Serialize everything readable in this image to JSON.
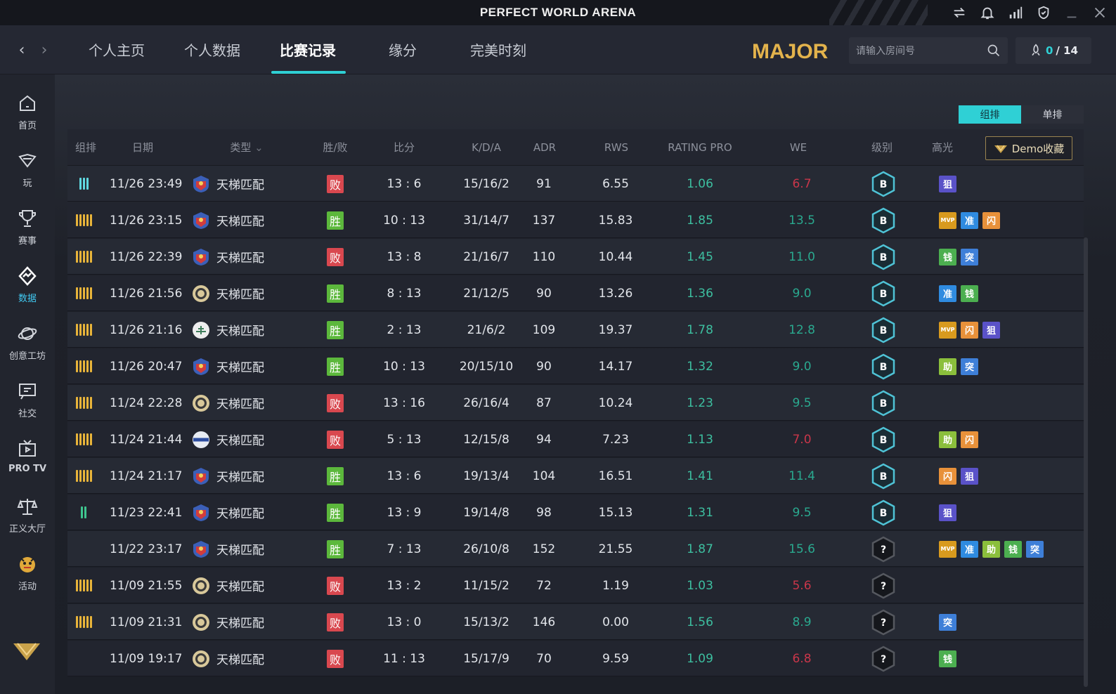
{
  "window": {
    "title": "PERFECT WORLD ARENA"
  },
  "nav": {
    "tabs": [
      "个人主页",
      "个人数据",
      "比赛记录",
      "缘分",
      "完美时刻"
    ],
    "active": "比赛记录",
    "logo_text": "MAJOR"
  },
  "search": {
    "placeholder": "请输入房间号"
  },
  "counter": {
    "current": "0",
    "total": "/ 14"
  },
  "sidebar": {
    "items": [
      "首页",
      "玩",
      "赛事",
      "数据",
      "创意工坊",
      "社交",
      "PRO TV",
      "正义大厅",
      "活动"
    ],
    "active": "数据"
  },
  "toggle": {
    "group": "组排",
    "solo": "单排",
    "selected": "组排"
  },
  "table": {
    "headers": {
      "group": "组排",
      "date": "日期",
      "type": "类型",
      "result": "胜/败",
      "score": "比分",
      "kda": "K/D/A",
      "adr": "ADR",
      "rws": "RWS",
      "rating": "RATING PRO",
      "we": "WE",
      "level": "级别",
      "highlights": "高光"
    },
    "demo_button": "Demo收藏",
    "rows": [
      {
        "party": 3,
        "party_color": "#5fd8e0",
        "date": "11/26 23:49",
        "type": "天梯匹配",
        "map": "red",
        "result": "败",
        "score": "13 : 6",
        "kda": "15/16/2",
        "adr": "91",
        "rws": "6.55",
        "rating": "1.06",
        "we": "6.7",
        "we_color": "#c9364a",
        "level": "B",
        "highlights": [
          "狙"
        ]
      },
      {
        "party": 5,
        "party_color": "#e8b43a",
        "date": "11/26 23:15",
        "type": "天梯匹配",
        "map": "red",
        "result": "胜",
        "score": "10 : 13",
        "kda": "31/14/7",
        "adr": "137",
        "rws": "15.83",
        "rating": "1.85",
        "we": "13.5",
        "we_color": "#2aa98f",
        "level": "B",
        "highlights": [
          "MVP",
          "准",
          "闪"
        ]
      },
      {
        "party": 5,
        "party_color": "#e8b43a",
        "date": "11/26 22:39",
        "type": "天梯匹配",
        "map": "red",
        "result": "败",
        "score": "13 : 8",
        "kda": "21/16/7",
        "adr": "110",
        "rws": "10.44",
        "rating": "1.45",
        "we": "11.0",
        "we_color": "#2aa98f",
        "level": "B",
        "highlights": [
          "钱",
          "突"
        ]
      },
      {
        "party": 5,
        "party_color": "#e8b43a",
        "date": "11/26 21:56",
        "type": "天梯匹配",
        "map": "gold",
        "result": "胜",
        "score": "8 : 13",
        "kda": "21/12/5",
        "adr": "90",
        "rws": "13.26",
        "rating": "1.36",
        "we": "9.0",
        "we_color": "#2aa98f",
        "level": "B",
        "highlights": [
          "准",
          "钱"
        ]
      },
      {
        "party": 5,
        "party_color": "#e8b43a",
        "date": "11/26 21:16",
        "type": "天梯匹配",
        "map": "white",
        "result": "胜",
        "score": "2 : 13",
        "kda": "21/6/2",
        "adr": "109",
        "rws": "19.37",
        "rating": "1.78",
        "we": "12.8",
        "we_color": "#2aa98f",
        "level": "B",
        "highlights": [
          "MVP",
          "闪",
          "狙"
        ]
      },
      {
        "party": 5,
        "party_color": "#e8b43a",
        "date": "11/26 20:47",
        "type": "天梯匹配",
        "map": "red",
        "result": "胜",
        "score": "10 : 13",
        "kda": "20/15/10",
        "adr": "90",
        "rws": "14.17",
        "rating": "1.32",
        "we": "9.0",
        "we_color": "#2aa98f",
        "level": "B",
        "highlights": [
          "助",
          "突"
        ]
      },
      {
        "party": 5,
        "party_color": "#e8b43a",
        "date": "11/24 22:28",
        "type": "天梯匹配",
        "map": "gold",
        "result": "败",
        "score": "13 : 16",
        "kda": "26/16/4",
        "adr": "87",
        "rws": "10.24",
        "rating": "1.23",
        "we": "9.5",
        "we_color": "#2aa98f",
        "level": "B",
        "highlights": []
      },
      {
        "party": 5,
        "party_color": "#e8b43a",
        "date": "11/24 21:44",
        "type": "天梯匹配",
        "map": "blue",
        "result": "败",
        "score": "5 : 13",
        "kda": "12/15/8",
        "adr": "94",
        "rws": "7.23",
        "rating": "1.13",
        "we": "7.0",
        "we_color": "#c9364a",
        "level": "B",
        "highlights": [
          "助",
          "闪"
        ]
      },
      {
        "party": 5,
        "party_color": "#e8b43a",
        "date": "11/24 21:17",
        "type": "天梯匹配",
        "map": "red",
        "result": "胜",
        "score": "13 : 6",
        "kda": "19/13/4",
        "adr": "104",
        "rws": "16.51",
        "rating": "1.41",
        "we": "11.4",
        "we_color": "#2aa98f",
        "level": "B",
        "highlights": [
          "闪",
          "狙"
        ]
      },
      {
        "party": 2,
        "party_color": "#3fc58f",
        "date": "11/23 22:41",
        "type": "天梯匹配",
        "map": "red",
        "result": "胜",
        "score": "13 : 9",
        "kda": "19/14/8",
        "adr": "98",
        "rws": "15.13",
        "rating": "1.31",
        "we": "9.5",
        "we_color": "#2aa98f",
        "level": "B",
        "highlights": [
          "狙"
        ]
      },
      {
        "party": 0,
        "party_color": "#e8b43a",
        "date": "11/22 23:17",
        "type": "天梯匹配",
        "map": "red",
        "result": "胜",
        "score": "7 : 13",
        "kda": "26/10/8",
        "adr": "152",
        "rws": "21.55",
        "rating": "1.87",
        "we": "15.6",
        "we_color": "#2aa98f",
        "level": "?",
        "highlights": [
          "MVP",
          "准",
          "助",
          "钱",
          "突"
        ]
      },
      {
        "party": 5,
        "party_color": "#e8b43a",
        "date": "11/09 21:55",
        "type": "天梯匹配",
        "map": "gold",
        "result": "败",
        "score": "13 : 2",
        "kda": "11/15/2",
        "adr": "72",
        "rws": "1.19",
        "rating": "1.03",
        "we": "5.6",
        "we_color": "#c9364a",
        "level": "?",
        "highlights": []
      },
      {
        "party": 5,
        "party_color": "#e8b43a",
        "date": "11/09 21:31",
        "type": "天梯匹配",
        "map": "gold",
        "result": "败",
        "score": "13 : 0",
        "kda": "15/13/2",
        "adr": "146",
        "rws": "0.00",
        "rating": "1.56",
        "we": "8.9",
        "we_color": "#2aa98f",
        "level": "?",
        "highlights": [
          "突"
        ]
      },
      {
        "party": 0,
        "party_color": "#e8b43a",
        "date": "11/09 19:17",
        "type": "天梯匹配",
        "map": "gold",
        "result": "败",
        "score": "11 : 13",
        "kda": "15/17/9",
        "adr": "70",
        "rws": "9.59",
        "rating": "1.09",
        "we": "6.8",
        "we_color": "#c9364a",
        "level": "?",
        "highlights": [
          "钱"
        ]
      }
    ]
  },
  "colors": {
    "accent": "#2fd0d5",
    "win": "#5cb83c",
    "loss": "#d9484f",
    "rating": "#3dbfa0"
  },
  "badge_colors": {
    "MVP": "#d89a1e",
    "准": "#2f8be0",
    "闪": "#e8913a",
    "狙": "#5a52c8",
    "钱": "#4caf50",
    "突": "#3e7fd8",
    "助": "#8bbf3c"
  }
}
